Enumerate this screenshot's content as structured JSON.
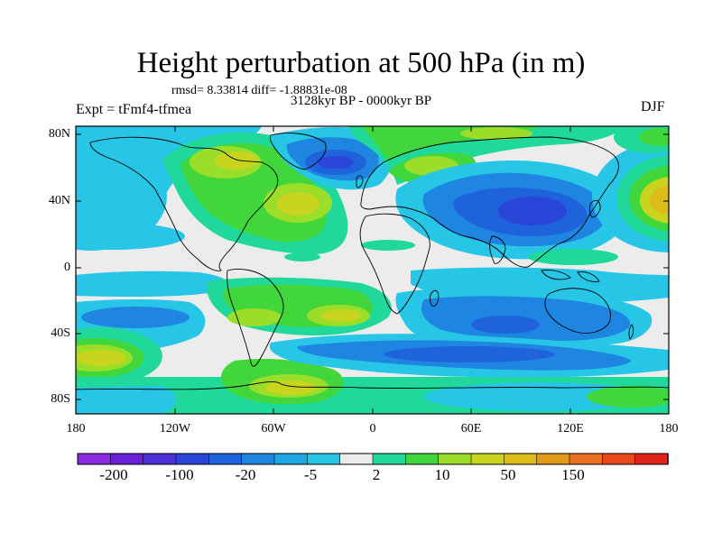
{
  "title": "Height perturbation at 500 hPa (in m)",
  "stats": "rmsd= 8.33814  diff= -1.88831e-08",
  "period": "3128kyr BP - 0000kyr BP",
  "expt": "Expt = tFmf4-tfmea",
  "season": "DJF",
  "lat_labels": [
    "80N",
    "40N",
    "0",
    "40S",
    "80S"
  ],
  "lon_labels": [
    "180",
    "120W",
    "60W",
    "0",
    "60E",
    "120E",
    "180"
  ],
  "colorbar": {
    "labels": [
      "-200",
      "-100",
      "-20",
      "-5",
      "2",
      "10",
      "50",
      "150"
    ],
    "colors": [
      "#8a2be2",
      "#6a1fd8",
      "#4b30d6",
      "#2a45d8",
      "#1f63dc",
      "#1e86e0",
      "#1ea8e3",
      "#28c6e6",
      "#ececec",
      "#20d89a",
      "#40d63c",
      "#9ade2a",
      "#c8d41e",
      "#ddbb1a",
      "#e09a1a",
      "#e8701e",
      "#e8481c",
      "#e0241a"
    ]
  },
  "palette": {
    "deep_blue": "#2a45d8",
    "mid_blue": "#1e86e0",
    "light_blue": "#28c6e6",
    "neutral": "#ececec",
    "green_light": "#20d89a",
    "green": "#40d63c",
    "yellow_green": "#9ade2a",
    "yellow": "#c8d41e",
    "orange": "#ddbb1a"
  }
}
